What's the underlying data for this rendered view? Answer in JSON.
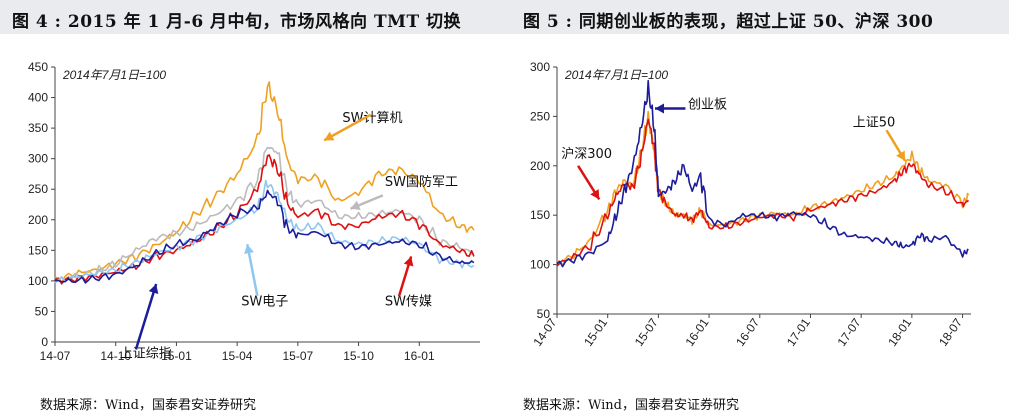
{
  "left_title": "图 4 : 2015 年 1 月-6 月中旬，市场风格向 TMT 切换",
  "right_title": "图 5 : 同期创业板的表现，超过上证 50、沪深 300",
  "left_source": "数据来源：Wind，国泰君安证券研究",
  "right_source": "数据来源：Wind，国泰君安证券研究",
  "chart_data": [
    {
      "type": "line",
      "note": "2014年7月1日=100",
      "ylim": [
        0,
        450
      ],
      "yticks": [
        0,
        50,
        100,
        150,
        200,
        250,
        300,
        350,
        400,
        450
      ],
      "xlim": [
        0,
        21
      ],
      "xticks": [
        {
          "label": "14-07",
          "x": 0
        },
        {
          "label": "14-10",
          "x": 3
        },
        {
          "label": "15-01",
          "x": 6
        },
        {
          "label": "15-04",
          "x": 9
        },
        {
          "label": "15-07",
          "x": 12
        },
        {
          "label": "15-10",
          "x": 15
        },
        {
          "label": "16-01",
          "x": 18
        }
      ],
      "x": [
        0,
        1,
        2,
        3,
        4,
        5,
        6,
        7,
        8,
        9,
        10,
        10.5,
        11,
        11.5,
        12,
        13,
        14,
        15,
        16,
        17,
        18,
        19,
        20,
        20.7
      ],
      "series": [
        {
          "name": "SW计算机",
          "color": "#f0a020",
          "values": [
            100,
            112,
            118,
            128,
            140,
            158,
            180,
            210,
            240,
            275,
            330,
            420,
            380,
            295,
            265,
            270,
            230,
            245,
            275,
            282,
            265,
            210,
            190,
            183
          ]
        },
        {
          "name": "SW国防军工",
          "color": "#bbbbbb",
          "values": [
            100,
            108,
            115,
            128,
            150,
            170,
            178,
            190,
            210,
            230,
            265,
            320,
            310,
            245,
            225,
            232,
            205,
            205,
            210,
            215,
            200,
            165,
            155,
            145
          ]
        },
        {
          "name": "SW传媒",
          "color": "#dd1111",
          "values": [
            100,
            103,
            108,
            115,
            125,
            140,
            150,
            165,
            185,
            210,
            250,
            305,
            285,
            225,
            205,
            215,
            190,
            190,
            205,
            210,
            195,
            160,
            150,
            140
          ]
        },
        {
          "name": "SW电子",
          "color": "#8ec7ef",
          "values": [
            100,
            106,
            112,
            118,
            130,
            145,
            155,
            168,
            185,
            200,
            220,
            260,
            240,
            200,
            185,
            190,
            165,
            160,
            165,
            170,
            160,
            135,
            128,
            125
          ]
        },
        {
          "name": "上证综指",
          "color": "#1c1c9c",
          "values": [
            100,
            100,
            104,
            110,
            125,
            145,
            160,
            168,
            190,
            210,
            220,
            245,
            232,
            185,
            175,
            180,
            160,
            155,
            160,
            165,
            160,
            140,
            130,
            130
          ]
        }
      ],
      "annotations": [
        {
          "text": "SW计算机",
          "x": 14.2,
          "y": 360
        },
        {
          "text": "SW国防军工",
          "x": 16.3,
          "y": 255
        },
        {
          "text": "SW电子",
          "x": 9.2,
          "y": 60
        },
        {
          "text": "SW传媒",
          "x": 16.3,
          "y": 60
        },
        {
          "text": "上证综指",
          "x": 3.2,
          "y": -25
        }
      ]
    },
    {
      "type": "line",
      "note": "2014年7月1日=100",
      "ylim": [
        50,
        300
      ],
      "yticks": [
        50,
        100,
        150,
        200,
        250,
        300
      ],
      "xlim": [
        0,
        49
      ],
      "xticks": [
        {
          "label": "14-07",
          "x": 0
        },
        {
          "label": "15-01",
          "x": 6
        },
        {
          "label": "15-07",
          "x": 12
        },
        {
          "label": "16-01",
          "x": 18
        },
        {
          "label": "16-07",
          "x": 24
        },
        {
          "label": "17-01",
          "x": 30
        },
        {
          "label": "17-07",
          "x": 36
        },
        {
          "label": "18-01",
          "x": 42
        },
        {
          "label": "18-07",
          "x": 48
        }
      ],
      "x": [
        0,
        2,
        4,
        6,
        7,
        8,
        9,
        10,
        10.8,
        11.5,
        12,
        13,
        14,
        15,
        16,
        17,
        18,
        20,
        22,
        24,
        26,
        28,
        30,
        32,
        34,
        36,
        38,
        40,
        41,
        42,
        43,
        44,
        46,
        48,
        48.7
      ],
      "series": [
        {
          "name": "上证50",
          "color": "#f0a020",
          "values": [
            100,
            110,
            125,
            155,
            175,
            185,
            180,
            215,
            250,
            215,
            175,
            160,
            150,
            150,
            145,
            155,
            140,
            140,
            145,
            150,
            152,
            150,
            158,
            162,
            168,
            175,
            182,
            190,
            200,
            210,
            195,
            185,
            180,
            162,
            170
          ]
        },
        {
          "name": "沪深300",
          "color": "#dd1111",
          "values": [
            100,
            108,
            120,
            150,
            170,
            182,
            178,
            210,
            248,
            218,
            175,
            160,
            150,
            150,
            145,
            155,
            138,
            138,
            143,
            148,
            150,
            148,
            155,
            160,
            165,
            170,
            175,
            185,
            195,
            202,
            190,
            180,
            175,
            160,
            165
          ]
        },
        {
          "name": "创业板",
          "color": "#1c1c9c",
          "values": [
            100,
            105,
            112,
            125,
            150,
            175,
            200,
            240,
            278,
            240,
            170,
            175,
            185,
            200,
            175,
            190,
            145,
            140,
            150,
            150,
            148,
            152,
            150,
            140,
            130,
            128,
            125,
            122,
            118,
            120,
            130,
            125,
            128,
            110,
            115
          ]
        }
      ],
      "annotations": [
        {
          "text": "创业板",
          "x": 15.5,
          "y": 258
        },
        {
          "text": "上证50",
          "x": 35,
          "y": 240
        },
        {
          "text": "沪深300",
          "x": 0.5,
          "y": 208
        }
      ]
    }
  ]
}
